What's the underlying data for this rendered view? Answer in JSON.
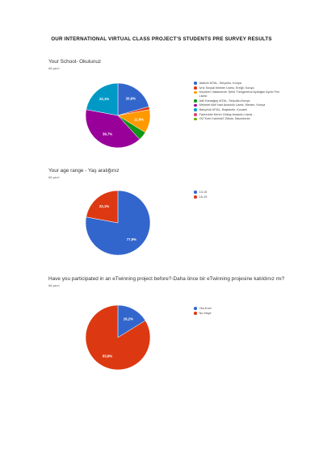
{
  "page_title": "OUR INTERNATIONAL VIRTUAL CLASS PROJECT'S STUDENTS PRE SURVEY RESULTS",
  "colors": {
    "blue": "#3366cc",
    "red": "#dc3912",
    "orange": "#ff9900",
    "green": "#109618",
    "purple": "#990099",
    "teal": "#0099c6",
    "pink": "#dd4477",
    "olive": "#66aa00"
  },
  "questions": [
    {
      "question": "Your School- Okulunuz",
      "responses": "68 yanıt",
      "chart_data": {
        "type": "pie",
        "series": [
          {
            "label": "Atatürk MTAL, Selçuklu, Konya",
            "value": 20.6,
            "value_label": "20,6%",
            "color": "#3366cc"
          },
          {
            "label": "İvriz Sosyal bilimler Lisesi, Ereğli, Konya",
            "value": 1.5,
            "value_label": "",
            "color": "#dc3912"
          },
          {
            "label": "Keçiören Vatansever Şehit Tümgeneral Aydoğan Aydın Fen Lisesi",
            "value": 11.8,
            "value_label": "11,8%",
            "color": "#ff9900"
          },
          {
            "label": "Adil Karaağaç MTAL, Selçuklu,Konya",
            "value": 4.4,
            "value_label": "",
            "color": "#109618"
          },
          {
            "label": "Mehmet Akif İnan Anadolu Lisesi, Meram, Konya",
            "value": 39.7,
            "value_label": "39,7%",
            "color": "#990099"
          },
          {
            "label": "Bahçevik MTAL, Başiskele, Kocaeli",
            "value": 22.1,
            "value_label": "22,1%",
            "color": "#0099c6"
          },
          {
            "label": "Fahreddin Kerim Gökay Anadolu Lisesi...",
            "value": 0.0,
            "value_label": "",
            "color": "#dd4477"
          },
          {
            "label": "OU\"Kole Kaninski\"-Bitola, Macedonia",
            "value": 0.0,
            "value_label": "",
            "color": "#66aa00"
          }
        ]
      }
    },
    {
      "question": "Your age range - Yaş aralığınız",
      "responses": "68 yanıt",
      "chart_data": {
        "type": "pie",
        "series": [
          {
            "label": "13-15",
            "value": 77.9,
            "value_label": "77,9%",
            "color": "#3366cc"
          },
          {
            "label": "16-19",
            "value": 22.1,
            "value_label": "22,1%",
            "color": "#dc3912"
          }
        ]
      }
    },
    {
      "question": "Have you participated in an eTwinning project before?-Daha önce bir eTwinning projesine katıldınız mı?",
      "responses": "68 yanıt",
      "chart_data": {
        "type": "pie",
        "series": [
          {
            "label": "Yes-Evet",
            "value": 16.2,
            "value_label": "16,2%",
            "color": "#3366cc"
          },
          {
            "label": "No-Hayır",
            "value": 83.8,
            "value_label": "83,8%",
            "color": "#dc3912"
          }
        ]
      }
    }
  ]
}
